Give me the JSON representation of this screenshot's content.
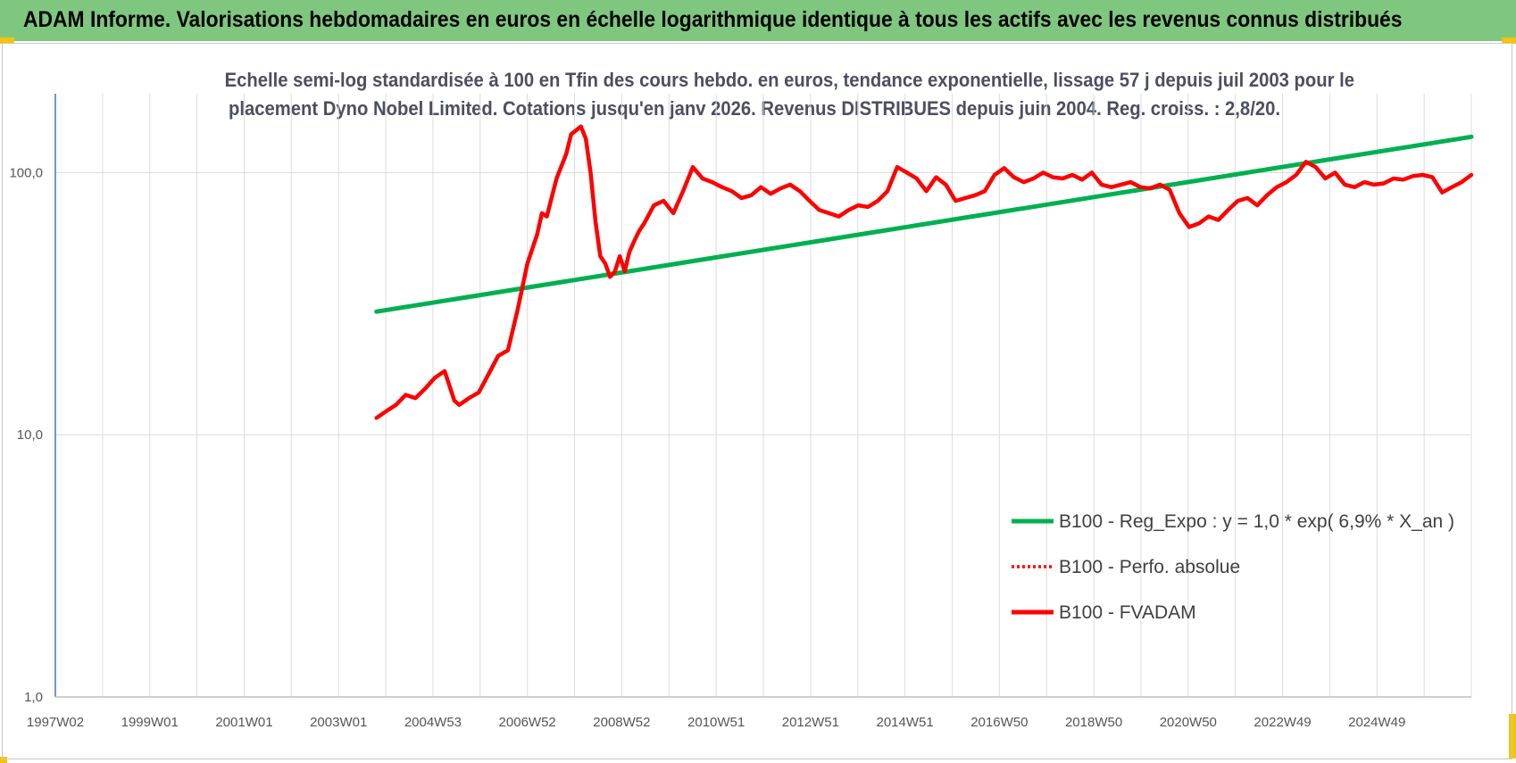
{
  "header": {
    "title": "ADAM Informe. Valorisations hebdomadaires en euros en échelle logarithmique identique à tous les actifs avec les revenus connus distribués"
  },
  "colors": {
    "banner": "#7fc77f",
    "trend": "#00b050",
    "price": "#ff0000",
    "corner_marks": "#f5c400"
  },
  "chart_data": {
    "type": "line",
    "title_lines": [
      "Echelle semi-log standardisée à 100 en Tfin des cours hebdo. en euros, tendance exponentielle, lissage 57 j depuis juil 2003 pour le",
      "placement Dyno Nobel Limited. Cotations jusqu'en janv 2026. Revenus DISTRIBUES depuis juin 2004. Reg. croiss. : 2,8/20."
    ],
    "y_scale": "log",
    "ylim": [
      1,
      200
    ],
    "y_ticks": [
      {
        "value": 1,
        "label": "1,0"
      },
      {
        "value": 10,
        "label": "10,0"
      },
      {
        "value": 100,
        "label": "100,0"
      }
    ],
    "x_ticks": [
      "1997W02",
      "1999W01",
      "2001W01",
      "2003W01",
      "2004W53",
      "2006W52",
      "2008W52",
      "2010W51",
      "2012W51",
      "2014W51",
      "2016W50",
      "2018W50",
      "2020W50",
      "2022W49",
      "2024W49"
    ],
    "xlim": [
      1997.0,
      2026.1
    ],
    "grid": true,
    "legend_position": "lower-right",
    "series": [
      {
        "name": "B100 - Reg_Expo : y = 1,0 * exp( 6,9% *  X_an )",
        "style": "solid",
        "x": [
          2003.6,
          2026.1
        ],
        "y": [
          29.5,
          137
        ]
      },
      {
        "name": "B100 - Perfo. absolue",
        "style": "dotted",
        "x": [],
        "y": []
      },
      {
        "name": "B100 - FVADAM",
        "style": "solid",
        "x": [
          2003.6,
          2003.8,
          2004.0,
          2004.2,
          2004.4,
          2004.6,
          2004.8,
          2005.0,
          2005.2,
          2005.3,
          2005.5,
          2005.7,
          2005.9,
          2006.1,
          2006.3,
          2006.5,
          2006.7,
          2006.9,
          2007.0,
          2007.1,
          2007.3,
          2007.5,
          2007.6,
          2007.8,
          2007.9,
          2008.0,
          2008.1,
          2008.2,
          2008.3,
          2008.4,
          2008.5,
          2008.6,
          2008.7,
          2008.8,
          2008.9,
          2009.0,
          2009.1,
          2009.3,
          2009.5,
          2009.7,
          2009.9,
          2010.1,
          2010.3,
          2010.5,
          2010.7,
          2010.9,
          2011.1,
          2011.3,
          2011.5,
          2011.7,
          2011.9,
          2012.1,
          2012.3,
          2012.5,
          2012.7,
          2012.9,
          2013.1,
          2013.3,
          2013.5,
          2013.7,
          2013.9,
          2014.1,
          2014.3,
          2014.5,
          2014.7,
          2014.9,
          2015.1,
          2015.3,
          2015.5,
          2015.7,
          2015.9,
          2016.1,
          2016.3,
          2016.5,
          2016.7,
          2016.9,
          2017.1,
          2017.3,
          2017.5,
          2017.7,
          2017.9,
          2018.1,
          2018.3,
          2018.5,
          2018.7,
          2018.9,
          2019.1,
          2019.3,
          2019.5,
          2019.7,
          2019.9,
          2020.1,
          2020.3,
          2020.5,
          2020.7,
          2020.9,
          2021.1,
          2021.3,
          2021.5,
          2021.7,
          2021.9,
          2022.1,
          2022.3,
          2022.5,
          2022.7,
          2022.9,
          2023.1,
          2023.3,
          2023.5,
          2023.7,
          2023.9,
          2024.1,
          2024.3,
          2024.5,
          2024.7,
          2024.9,
          2025.1,
          2025.3,
          2025.5,
          2025.7,
          2025.9,
          2026.1
        ],
        "y": [
          11.6,
          12.3,
          13.0,
          14.2,
          13.8,
          15.0,
          16.5,
          17.5,
          13.5,
          13.0,
          13.8,
          14.5,
          17.0,
          20.0,
          21.0,
          30.0,
          45.0,
          58.0,
          70.0,
          68.0,
          95.0,
          118.0,
          140.0,
          150.0,
          135.0,
          100.0,
          65.0,
          48.0,
          45.0,
          40.0,
          42.0,
          48.0,
          42.0,
          50.0,
          55.0,
          60.0,
          64.0,
          75.0,
          78.0,
          70.0,
          85.0,
          105.0,
          95.0,
          92.0,
          88.0,
          85.0,
          80.0,
          82.0,
          88.0,
          83.0,
          87.0,
          90.0,
          85.0,
          78.0,
          72.0,
          70.0,
          68.0,
          72.0,
          75.0,
          74.0,
          78.0,
          85.0,
          105.0,
          100.0,
          95.0,
          85.0,
          96.0,
          90.0,
          78.0,
          80.0,
          82.0,
          85.0,
          98.0,
          104.0,
          96.0,
          92.0,
          95.0,
          100.0,
          96.0,
          95.0,
          98.0,
          94.0,
          100.0,
          90.0,
          88.0,
          90.0,
          92.0,
          88.0,
          87.0,
          90.0,
          86.0,
          70.0,
          62.0,
          64.0,
          68.0,
          66.0,
          72.0,
          78.0,
          80.0,
          75.0,
          82.0,
          88.0,
          92.0,
          98.0,
          110.0,
          105.0,
          95.0,
          100.0,
          90.0,
          88.0,
          92.0,
          90.0,
          91.0,
          95.0,
          94.0,
          97.0,
          98.0,
          96.0,
          84.0,
          88.0,
          92.0,
          98.0
        ]
      }
    ]
  }
}
